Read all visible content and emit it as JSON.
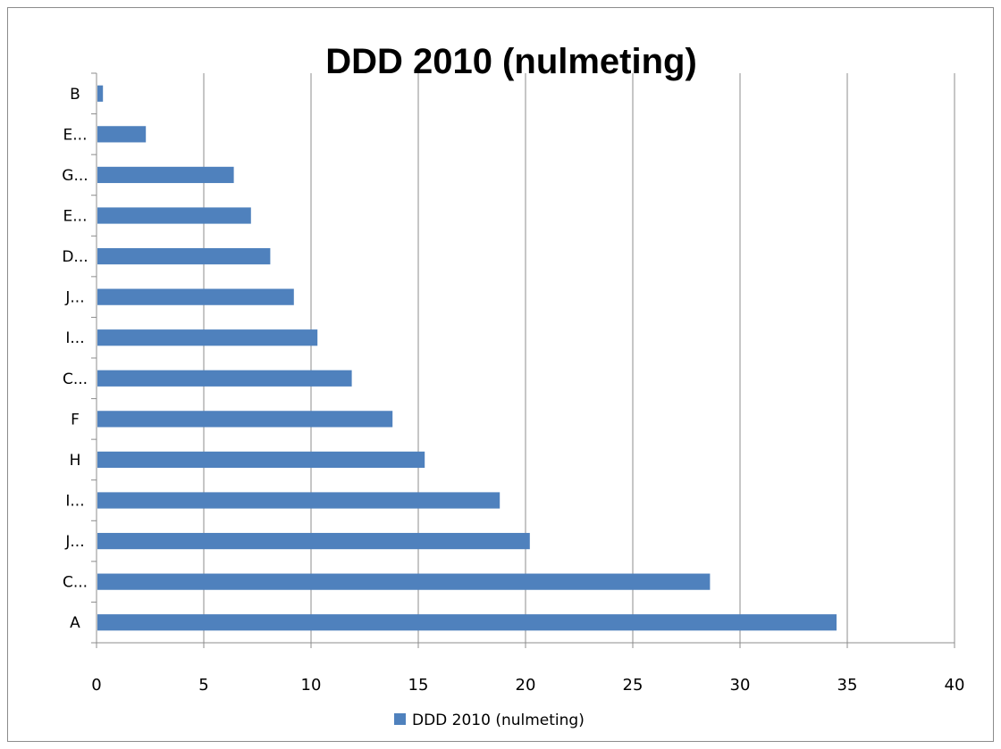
{
  "chart_data": {
    "type": "bar",
    "orientation": "horizontal",
    "title": "DDD 2010  (nulmeting)",
    "categories": [
      "A",
      "C...",
      "J...",
      "I...",
      "H",
      "F",
      "C...",
      "I...",
      "J...",
      "D...",
      "E...",
      "G...",
      "E...",
      "B"
    ],
    "series": [
      {
        "name": "DDD 2010  (nulmeting)",
        "color": "#4f81bd",
        "values": [
          34.5,
          28.6,
          20.2,
          18.8,
          15.3,
          13.8,
          11.9,
          10.3,
          9.2,
          8.1,
          7.2,
          6.4,
          2.3,
          0.3
        ]
      }
    ],
    "xlim": [
      0,
      40
    ],
    "xticks": [
      "0",
      "5",
      "10",
      "15",
      "20",
      "25",
      "30",
      "35",
      "40"
    ],
    "grid": "vertical",
    "legend": "bottom",
    "xlabel": "",
    "ylabel": ""
  }
}
